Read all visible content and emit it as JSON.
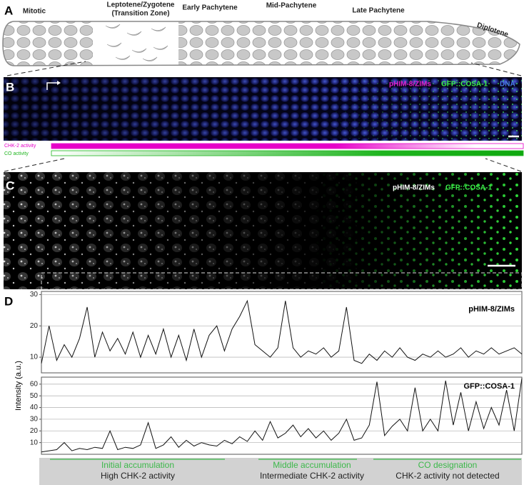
{
  "panel_a": {
    "label": "A",
    "stage_labels": [
      "Mitotic",
      "Leptotene/Zygotene",
      "(Transition Zone)",
      "Early Pachytene",
      "Mid-Pachytene",
      "Late Pachytene",
      "Diplotene"
    ]
  },
  "panel_b": {
    "label": "B",
    "channels": [
      "pHIM-8/ZIMs",
      "GFP::COSA-1",
      "DNA"
    ],
    "activity": [
      "CHK-2 activity",
      "CO activity"
    ]
  },
  "panel_c": {
    "label": "C",
    "channels": [
      "pHIM-8/ZIMs",
      "GFP::COSA-1"
    ]
  },
  "panel_d": {
    "label": "D",
    "y_axis_label": "Intensity (a.u.)",
    "phases": [
      {
        "title": "Initial accumulation",
        "subtitle": "High CHK-2 activity"
      },
      {
        "title": "Middle accumulation",
        "subtitle": "Intermediate CHK-2 activity"
      },
      {
        "title": "CO designation",
        "subtitle": "CHK-2 activity not detected"
      }
    ]
  },
  "chart_data": [
    {
      "type": "line",
      "title": "pHIM-8/ZIMs",
      "color": "#111111",
      "grid": true,
      "ylim": [
        5,
        31
      ],
      "yticks": [
        10,
        20,
        30
      ],
      "values": [
        8,
        20,
        9,
        14,
        10,
        16,
        26,
        10,
        18,
        12,
        16,
        11,
        18,
        10,
        17,
        11,
        19,
        10,
        17,
        9,
        19,
        10,
        17,
        20,
        12,
        19,
        23,
        28,
        14,
        12,
        10,
        13,
        28,
        13,
        10,
        12,
        11,
        13,
        10,
        12,
        26,
        9,
        8,
        11,
        9,
        12,
        10,
        13,
        10,
        9,
        11,
        10,
        12,
        10,
        11,
        13,
        10,
        12,
        11,
        13,
        11,
        12,
        13,
        11
      ]
    },
    {
      "type": "line",
      "title": "GFP::COSA-1",
      "color": "#111111",
      "grid": true,
      "ylim": [
        0,
        66
      ],
      "yticks": [
        10,
        20,
        30,
        40,
        50,
        60
      ],
      "values": [
        2,
        3,
        4,
        10,
        3,
        5,
        4,
        6,
        5,
        20,
        4,
        6,
        5,
        8,
        27,
        5,
        8,
        15,
        6,
        12,
        7,
        10,
        8,
        7,
        12,
        9,
        15,
        11,
        20,
        12,
        28,
        14,
        18,
        25,
        15,
        22,
        14,
        20,
        12,
        18,
        30,
        12,
        14,
        25,
        62,
        16,
        24,
        30,
        20,
        57,
        20,
        30,
        20,
        63,
        25,
        53,
        20,
        45,
        22,
        40,
        25,
        55,
        20,
        65
      ]
    }
  ]
}
